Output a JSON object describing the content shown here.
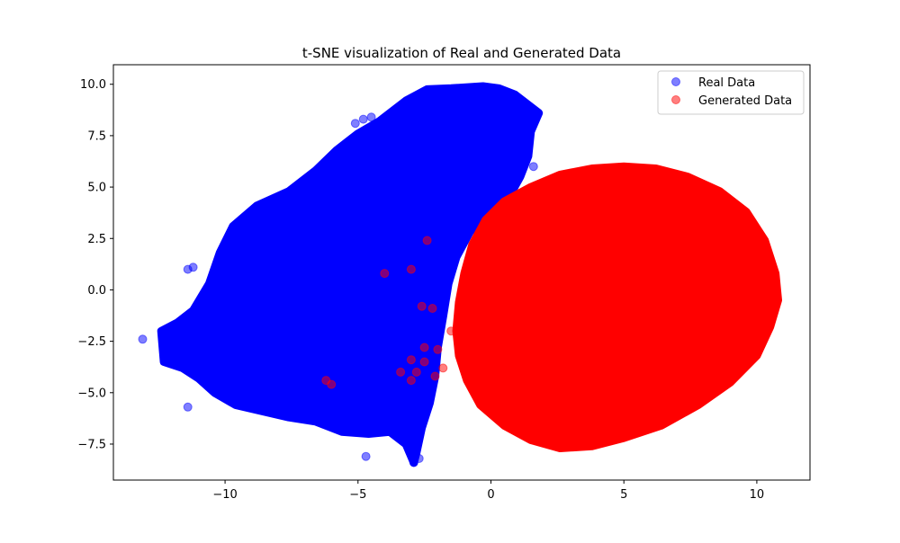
{
  "chart_data": {
    "type": "scatter",
    "title": "t-SNE visualization of Real and Generated Data",
    "xlabel": "",
    "ylabel": "",
    "xlim": [
      -14.2,
      12.0
    ],
    "ylim": [
      -9.25,
      10.95
    ],
    "x_ticks": [
      -10,
      -5,
      0,
      5,
      10
    ],
    "x_tick_labels": [
      "−10",
      "−5",
      "0",
      "5",
      "10"
    ],
    "y_ticks": [
      -7.5,
      -5.0,
      -2.5,
      0.0,
      2.5,
      5.0,
      7.5,
      10.0
    ],
    "y_tick_labels": [
      "−7.5",
      "−5.0",
      "−2.5",
      "0.0",
      "2.5",
      "5.0",
      "7.5",
      "10.0"
    ],
    "grid": false,
    "legend_position": "upper right",
    "series": [
      {
        "name": "Real Data",
        "color": "#0000ff",
        "alpha": 0.5,
        "main_cluster_outline": [
          [
            -12.4,
            -2.0
          ],
          [
            -11.8,
            -1.6
          ],
          [
            -11.2,
            -1.0
          ],
          [
            -10.6,
            0.3
          ],
          [
            -10.2,
            1.8
          ],
          [
            -9.7,
            3.1
          ],
          [
            -8.8,
            4.1
          ],
          [
            -7.6,
            4.8
          ],
          [
            -6.6,
            5.8
          ],
          [
            -5.8,
            6.8
          ],
          [
            -5.0,
            7.6
          ],
          [
            -4.2,
            8.2
          ],
          [
            -3.2,
            9.2
          ],
          [
            -2.4,
            9.75
          ],
          [
            -1.5,
            9.8
          ],
          [
            -0.3,
            9.9
          ],
          [
            0.3,
            9.8
          ],
          [
            0.9,
            9.5
          ],
          [
            1.8,
            8.6
          ],
          [
            1.5,
            7.7
          ],
          [
            1.4,
            6.5
          ],
          [
            1.1,
            5.5
          ],
          [
            0.8,
            4.8
          ],
          [
            -0.2,
            3.8
          ],
          [
            -0.8,
            2.8
          ],
          [
            -1.3,
            1.6
          ],
          [
            -1.6,
            0.3
          ],
          [
            -1.8,
            -1.3
          ],
          [
            -2.0,
            -2.8
          ],
          [
            -2.1,
            -4.2
          ],
          [
            -2.3,
            -5.5
          ],
          [
            -2.6,
            -6.7
          ],
          [
            -2.8,
            -7.9
          ],
          [
            -2.9,
            -8.4
          ],
          [
            -3.2,
            -7.5
          ],
          [
            -3.8,
            -6.9
          ],
          [
            -4.6,
            -7.0
          ],
          [
            -5.6,
            -6.9
          ],
          [
            -6.6,
            -6.4
          ],
          [
            -7.6,
            -6.2
          ],
          [
            -8.6,
            -5.9
          ],
          [
            -9.6,
            -5.6
          ],
          [
            -10.4,
            -5.0
          ],
          [
            -11.0,
            -4.3
          ],
          [
            -11.6,
            -3.8
          ],
          [
            -12.3,
            -3.5
          ]
        ],
        "outliers": [
          [
            -13.1,
            -2.4
          ],
          [
            -11.4,
            -5.7
          ],
          [
            -11.4,
            1.0
          ],
          [
            -11.2,
            1.1
          ],
          [
            -4.7,
            -8.1
          ],
          [
            -4.8,
            8.3
          ],
          [
            -4.5,
            8.4
          ],
          [
            -5.1,
            8.1
          ],
          [
            -2.4,
            9.6
          ],
          [
            1.2,
            5.9
          ],
          [
            1.6,
            6.0
          ],
          [
            0.6,
            5.8
          ],
          [
            -2.9,
            -8.4
          ],
          [
            -2.7,
            -8.2
          ]
        ]
      },
      {
        "name": "Generated Data",
        "color": "#ff0000",
        "alpha": 0.5,
        "main_cluster_outline": [
          [
            0.5,
            4.3
          ],
          [
            1.5,
            5.0
          ],
          [
            2.6,
            5.6
          ],
          [
            3.8,
            5.9
          ],
          [
            5.0,
            6.0
          ],
          [
            6.2,
            5.9
          ],
          [
            7.4,
            5.5
          ],
          [
            8.6,
            4.8
          ],
          [
            9.6,
            3.8
          ],
          [
            10.3,
            2.4
          ],
          [
            10.7,
            0.8
          ],
          [
            10.8,
            -0.5
          ],
          [
            10.5,
            -1.8
          ],
          [
            10.0,
            -3.2
          ],
          [
            9.0,
            -4.5
          ],
          [
            7.8,
            -5.6
          ],
          [
            6.4,
            -6.6
          ],
          [
            5.0,
            -7.2
          ],
          [
            3.8,
            -7.6
          ],
          [
            2.6,
            -7.7
          ],
          [
            1.5,
            -7.3
          ],
          [
            0.5,
            -6.6
          ],
          [
            -0.4,
            -5.6
          ],
          [
            -0.9,
            -4.4
          ],
          [
            -1.2,
            -3.2
          ],
          [
            -1.3,
            -2.0
          ],
          [
            -1.2,
            -0.6
          ],
          [
            -1.0,
            0.8
          ],
          [
            -0.7,
            2.2
          ],
          [
            -0.2,
            3.4
          ]
        ],
        "outliers": [
          [
            -4.0,
            0.8
          ],
          [
            -3.0,
            1.0
          ],
          [
            -2.4,
            2.4
          ],
          [
            -2.6,
            -0.8
          ],
          [
            -2.2,
            -0.9
          ],
          [
            -2.5,
            -2.8
          ],
          [
            -2.0,
            -2.9
          ],
          [
            -3.0,
            -3.4
          ],
          [
            -2.5,
            -3.5
          ],
          [
            -3.4,
            -4.0
          ],
          [
            -2.8,
            -4.0
          ],
          [
            -3.0,
            -4.4
          ],
          [
            -2.1,
            -4.2
          ],
          [
            -6.2,
            -4.4
          ],
          [
            -6.0,
            -4.6
          ],
          [
            -1.5,
            -2.0
          ],
          [
            -1.8,
            -3.8
          ]
        ]
      }
    ]
  }
}
